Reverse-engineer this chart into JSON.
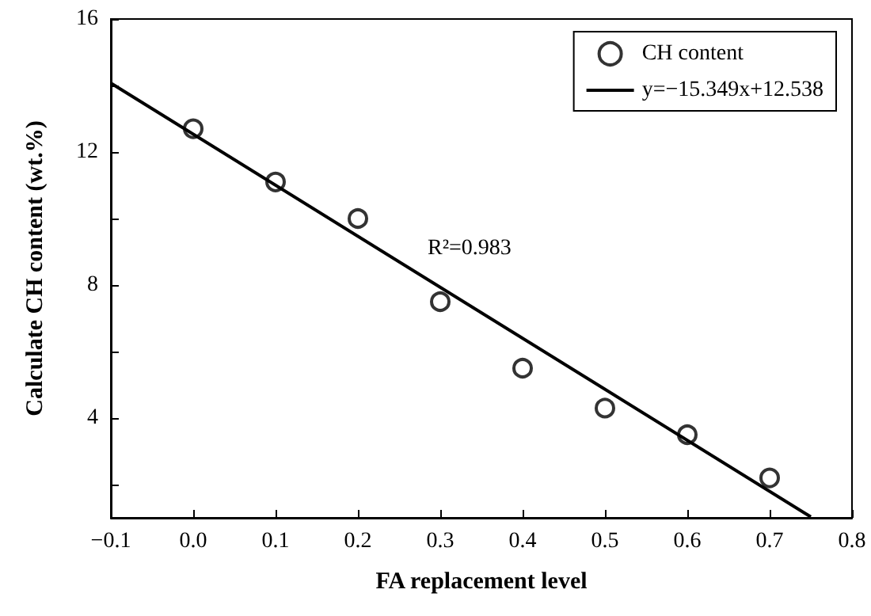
{
  "chart_data": {
    "type": "scatter",
    "xlabel": "FA replacement level",
    "ylabel": "Calculate CH content (wt.%)",
    "annotations": [
      "R²=0.983"
    ],
    "x": [
      0.0,
      0.1,
      0.2,
      0.3,
      0.4,
      0.5,
      0.6,
      0.7
    ],
    "series": [
      {
        "name": "CH content",
        "color": "#000000",
        "marker": "circle",
        "values": [
          12.7,
          11.1,
          10.0,
          7.5,
          5.5,
          4.3,
          3.5,
          2.2
        ]
      },
      {
        "name": "y=−15.349x+12.538",
        "type": "line",
        "color": "#000000",
        "marker": "none",
        "line_style": "solid",
        "x": [
          -0.1,
          0.75
        ],
        "values": [
          14.07,
          1.03
        ]
      }
    ],
    "xlim": [
      -0.1,
      0.8
    ],
    "xticks": [
      {
        "value": -0.1,
        "label": "−0.1"
      },
      {
        "value": 0,
        "label": "0.0"
      },
      {
        "value": 0.1,
        "label": "0.1"
      },
      {
        "value": 0.2,
        "label": "0.2"
      },
      {
        "value": 0.3,
        "label": "0.3"
      },
      {
        "value": 0.4,
        "label": "0.4"
      },
      {
        "value": 0.5,
        "label": "0.5"
      },
      {
        "value": 0.6,
        "label": "0.6"
      },
      {
        "value": 0.7,
        "label": "0.7"
      },
      {
        "value": 0.8,
        "label": "0.8"
      }
    ],
    "ylim": [
      1,
      16
    ],
    "yticks": [
      {
        "value": 2,
        "label": null
      },
      4,
      {
        "value": 6,
        "label": null
      },
      8,
      {
        "value": 10,
        "label": null
      },
      12,
      {
        "value": 14,
        "label": null
      },
      16
    ],
    "grid": false,
    "legend": "top right"
  }
}
